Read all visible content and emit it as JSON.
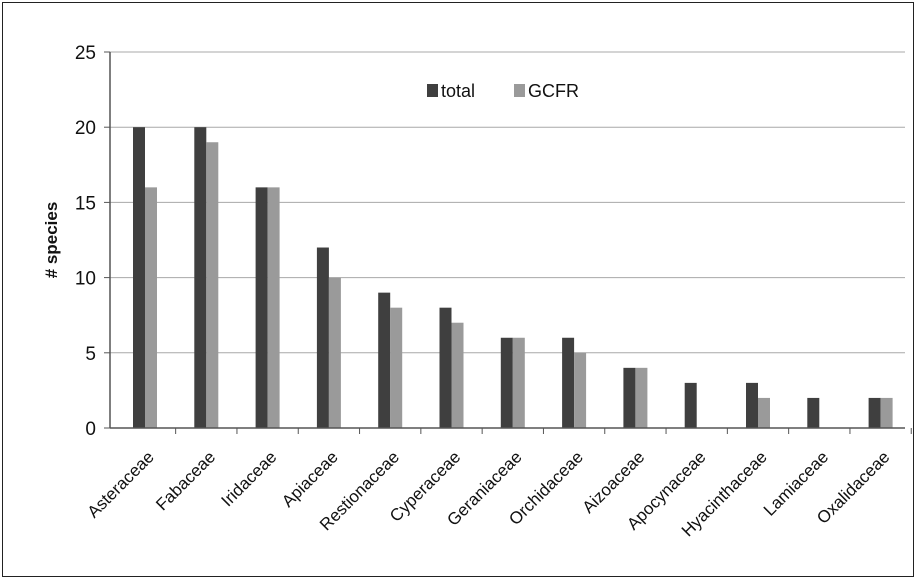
{
  "chart_data": {
    "type": "bar",
    "title": "",
    "xlabel": "",
    "ylabel": "# species",
    "ylim": [
      0,
      25
    ],
    "yticks": [
      0,
      5,
      10,
      15,
      20,
      25
    ],
    "grid": true,
    "legend_position": "top-center",
    "categories": [
      "Asteraceae",
      "Fabaceae",
      "Iridaceae",
      "Apiaceae",
      "Restionaceae",
      "Cyperaceae",
      "Geraniaceae",
      "Orchidaceae",
      "Aizoaceae",
      "Apocynaceae",
      "Hyacinthaceae",
      "Lamiaceae",
      "Oxalidaceae"
    ],
    "series": [
      {
        "name": "total",
        "color": "#3f3f3f",
        "values": [
          20,
          20,
          16,
          12,
          9,
          8,
          6,
          6,
          4,
          3,
          3,
          2,
          2
        ]
      },
      {
        "name": "GCFR",
        "color": "#9a9a9a",
        "values": [
          16,
          19,
          16,
          10,
          8,
          7,
          6,
          5,
          4,
          0,
          2,
          0,
          2
        ]
      }
    ]
  }
}
